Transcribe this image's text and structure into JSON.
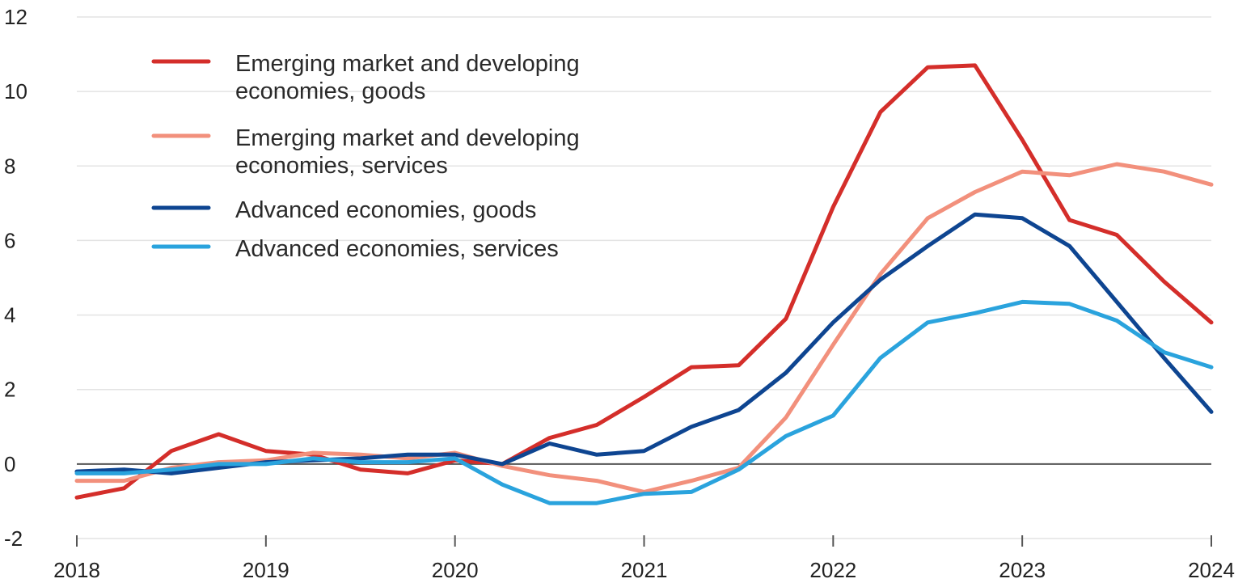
{
  "chart_data": {
    "type": "line",
    "title": "",
    "xlabel": "",
    "ylabel": "",
    "xlim": [
      2018,
      2024
    ],
    "ylim": [
      -2,
      12
    ],
    "x_ticks": [
      "2018",
      "2019",
      "2020",
      "2021",
      "2022",
      "2023",
      "2024"
    ],
    "y_ticks": [
      "12",
      "10",
      "8",
      "6",
      "4",
      "2",
      "0",
      "-2"
    ],
    "grid": true,
    "legend_position": "top-left",
    "x": [
      2018.0,
      2018.25,
      2018.5,
      2018.75,
      2019.0,
      2019.25,
      2019.5,
      2019.75,
      2020.0,
      2020.25,
      2020.5,
      2020.75,
      2021.0,
      2021.25,
      2021.5,
      2021.75,
      2022.0,
      2022.25,
      2022.5,
      2022.75,
      2023.0,
      2023.25,
      2023.5,
      2023.75,
      2024.0
    ],
    "series": [
      {
        "name_lines": [
          "Emerging market and developing",
          "economies, goods"
        ],
        "color": "#d42e2a",
        "values": [
          -0.9,
          -0.65,
          0.35,
          0.8,
          0.35,
          0.25,
          -0.15,
          -0.25,
          0.1,
          0.0,
          0.7,
          1.05,
          1.8,
          2.6,
          2.65,
          3.9,
          6.9,
          9.45,
          10.65,
          10.7,
          8.7,
          6.55,
          6.15,
          4.9,
          3.8
        ]
      },
      {
        "name_lines": [
          "Emerging market and developing",
          "economies, services"
        ],
        "color": "#f2907c",
        "values": [
          -0.45,
          -0.45,
          -0.1,
          0.05,
          0.1,
          0.3,
          0.25,
          0.15,
          0.3,
          -0.05,
          -0.3,
          -0.45,
          -0.75,
          -0.45,
          -0.1,
          1.25,
          3.2,
          5.1,
          6.6,
          7.3,
          7.85,
          7.75,
          8.05,
          7.85,
          7.5
        ]
      },
      {
        "name_lines": [
          "Advanced economies, goods"
        ],
        "color": "#0e4591",
        "values": [
          -0.2,
          -0.15,
          -0.25,
          -0.1,
          0.05,
          0.1,
          0.15,
          0.25,
          0.25,
          0.0,
          0.55,
          0.25,
          0.35,
          1.0,
          1.45,
          2.45,
          3.8,
          4.95,
          5.85,
          6.7,
          6.6,
          5.85,
          4.35,
          2.85,
          1.4
        ]
      },
      {
        "name_lines": [
          "Advanced economies, services"
        ],
        "color": "#2aa3dd",
        "values": [
          -0.25,
          -0.25,
          -0.15,
          0.0,
          0.0,
          0.15,
          0.05,
          0.05,
          0.15,
          -0.55,
          -1.05,
          -1.05,
          -0.8,
          -0.75,
          -0.15,
          0.75,
          1.3,
          2.85,
          3.8,
          4.05,
          4.35,
          4.3,
          3.85,
          3.0,
          2.6
        ]
      }
    ]
  }
}
